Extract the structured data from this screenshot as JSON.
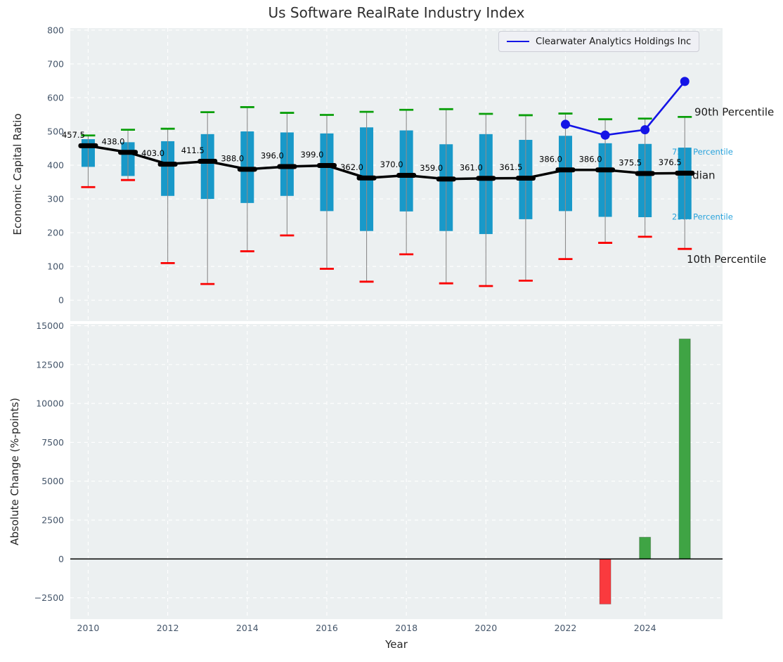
{
  "title": "Us Software RealRate Industry Index",
  "legend": {
    "label": "Clearwater Analytics Holdings Inc"
  },
  "colors": {
    "box_fill": "#1899c9",
    "whisker": "#8c8c8c",
    "cap_high": "#0a9f0a",
    "cap_low": "#fa0000",
    "median": "#000000",
    "overlay_line": "#1414e6",
    "bar_positive": "#3fa444",
    "bar_negative": "#fa3a3e",
    "plot_bg": "#ecf0f1",
    "grid": "#ffffff",
    "tick_label": "#44556a",
    "annotation_blue": "#29a3dc",
    "annotation_black": "#1a1a1a",
    "zero_line": "#000000"
  },
  "chart_data": [
    {
      "type": "boxplot_timeseries",
      "title": "Us Software RealRate Industry Index",
      "ylabel": "Economic Capital Ratio",
      "ylim": [
        -62,
        806
      ],
      "xlim": [
        2009.55,
        2025.95
      ],
      "grid": true,
      "yticks": [
        {
          "v": 0,
          "label": "0"
        },
        {
          "v": 100,
          "label": "100"
        },
        {
          "v": 200,
          "label": "200"
        },
        {
          "v": 300,
          "label": "300"
        },
        {
          "v": 400,
          "label": "400"
        },
        {
          "v": 500,
          "label": "500"
        },
        {
          "v": 600,
          "label": "600"
        },
        {
          "v": 700,
          "label": "700"
        },
        {
          "v": 800,
          "label": "800"
        }
      ],
      "boxes": [
        {
          "year": 2010,
          "p10": 335,
          "p25": 395,
          "median": 457.5,
          "median_label": "457.5",
          "p75": 477,
          "p90": 488
        },
        {
          "year": 2011,
          "p10": 356,
          "p25": 368,
          "median": 438.0,
          "median_label": "438.0",
          "p75": 468,
          "p90": 505
        },
        {
          "year": 2012,
          "p10": 110,
          "p25": 309,
          "median": 403.0,
          "median_label": "403.0",
          "p75": 471,
          "p90": 508
        },
        {
          "year": 2013,
          "p10": 48,
          "p25": 300,
          "median": 411.5,
          "median_label": "411.5",
          "p75": 492,
          "p90": 557
        },
        {
          "year": 2014,
          "p10": 145,
          "p25": 288,
          "median": 388.0,
          "median_label": "388.0",
          "p75": 500,
          "p90": 572
        },
        {
          "year": 2015,
          "p10": 192,
          "p25": 309,
          "median": 396.0,
          "median_label": "396.0",
          "p75": 497,
          "p90": 555
        },
        {
          "year": 2016,
          "p10": 93,
          "p25": 264,
          "median": 399.0,
          "median_label": "399.0",
          "p75": 494,
          "p90": 549
        },
        {
          "year": 2017,
          "p10": 55,
          "p25": 205,
          "median": 362.0,
          "median_label": "362.0",
          "p75": 512,
          "p90": 558
        },
        {
          "year": 2018,
          "p10": 136,
          "p25": 263,
          "median": 370.0,
          "median_label": "370.0",
          "p75": 503,
          "p90": 564
        },
        {
          "year": 2019,
          "p10": 50,
          "p25": 205,
          "median": 359.0,
          "median_label": "359.0",
          "p75": 462,
          "p90": 566
        },
        {
          "year": 2020,
          "p10": 42,
          "p25": 196,
          "median": 361.0,
          "median_label": "361.0",
          "p75": 492,
          "p90": 552
        },
        {
          "year": 2021,
          "p10": 58,
          "p25": 240,
          "median": 361.5,
          "median_label": "361.5",
          "p75": 475,
          "p90": 548
        },
        {
          "year": 2022,
          "p10": 122,
          "p25": 264,
          "median": 386.0,
          "median_label": "386.0",
          "p75": 487,
          "p90": 553
        },
        {
          "year": 2023,
          "p10": 170,
          "p25": 247,
          "median": 386.0,
          "median_label": "386.0",
          "p75": 465,
          "p90": 536
        },
        {
          "year": 2024,
          "p10": 188,
          "p25": 246,
          "median": 375.5,
          "median_label": "375.5",
          "p75": 463,
          "p90": 538
        },
        {
          "year": 2025,
          "p10": 152,
          "p25": 240,
          "median": 376.5,
          "median_label": "376.5",
          "p75": 452,
          "p90": 543
        }
      ],
      "overlay_series": {
        "name": "Clearwater Analytics Holdings Inc",
        "points": [
          {
            "year": 2022,
            "value": 521
          },
          {
            "year": 2023,
            "value": 489
          },
          {
            "year": 2024,
            "value": 505
          },
          {
            "year": 2025,
            "value": 648
          }
        ]
      },
      "annotations": [
        {
          "label": "90th Percentile",
          "value": 558,
          "x": 988,
          "size": 15,
          "color": "#1a1a1a"
        },
        {
          "label": "75th Percentile",
          "value": 440,
          "x": 956,
          "size": 11.5,
          "color": "#29a3dc"
        },
        {
          "label": "Median",
          "value": 371,
          "x": 963,
          "size": 15,
          "color": "#1a1a1a"
        },
        {
          "label": "25th Percentile",
          "value": 247,
          "x": 956,
          "size": 11.5,
          "color": "#29a3dc"
        },
        {
          "label": "10th Percentile",
          "value": 122,
          "x": 977,
          "size": 15,
          "color": "#1a1a1a"
        }
      ]
    },
    {
      "type": "bar",
      "ylabel": "Absolute Change (%-points)",
      "xlabel": "Year",
      "ylim": [
        -3870,
        15110
      ],
      "grid": true,
      "yticks": [
        {
          "v": 15000,
          "label": "15000"
        },
        {
          "v": 12500,
          "label": "12500"
        },
        {
          "v": 10000,
          "label": "10000"
        },
        {
          "v": 7500,
          "label": "7500"
        },
        {
          "v": 5000,
          "label": "5000"
        },
        {
          "v": 2500,
          "label": "2500"
        },
        {
          "v": 0,
          "label": "0"
        },
        {
          "v": -2500,
          "label": "−2500"
        }
      ],
      "xticks": [
        {
          "v": 2010,
          "label": "2010"
        },
        {
          "v": 2012,
          "label": "2012"
        },
        {
          "v": 2014,
          "label": "2014"
        },
        {
          "v": 2016,
          "label": "2016"
        },
        {
          "v": 2018,
          "label": "2018"
        },
        {
          "v": 2020,
          "label": "2020"
        },
        {
          "v": 2022,
          "label": "2022"
        },
        {
          "v": 2024,
          "label": "2024"
        }
      ],
      "categories": [
        2010,
        2011,
        2012,
        2013,
        2014,
        2015,
        2016,
        2017,
        2018,
        2019,
        2020,
        2021,
        2022,
        2023,
        2024,
        2025
      ],
      "values": [
        0,
        0,
        0,
        0,
        0,
        0,
        0,
        0,
        0,
        0,
        0,
        0,
        0,
        -2900,
        1400,
        14150
      ]
    }
  ]
}
